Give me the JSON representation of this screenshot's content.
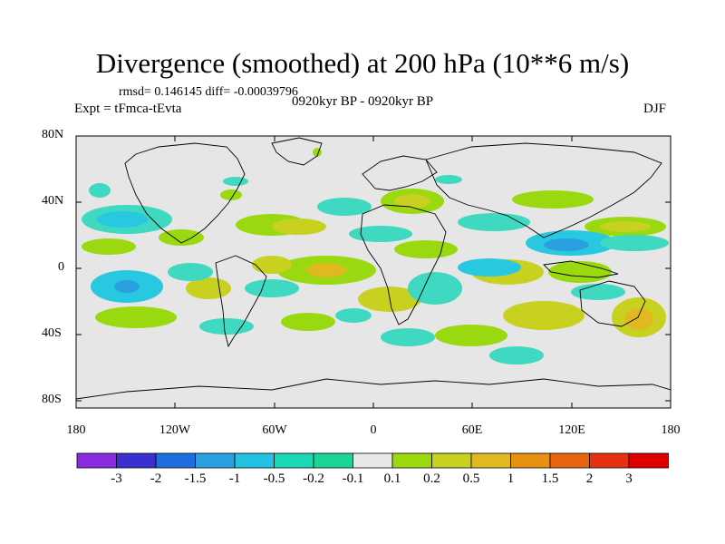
{
  "title": "Divergence (smoothed) at 200 hPa (10**6 m/s)",
  "stats": "rmsd= 0.146145 diff= -0.00039796",
  "experiment": "Expt = tFmca-tEvta",
  "period": "0920kyr BP - 0920kyr BP",
  "season": "DJF",
  "lat_labels": [
    "80N",
    "40N",
    "0",
    "40S",
    "80S"
  ],
  "lon_labels": [
    "180",
    "120W",
    "60W",
    "0",
    "60E",
    "120E",
    "180"
  ],
  "colorbar": {
    "labels": [
      "-3",
      "-2",
      "-1.5",
      "-1",
      "-0.5",
      "-0.2",
      "-0.1",
      "0.1",
      "0.2",
      "0.5",
      "1",
      "1.5",
      "2",
      "3"
    ],
    "colors": [
      "#8a2be2",
      "#3a2fd0",
      "#1e6ee0",
      "#2aa0e0",
      "#22c3e2",
      "#1dd8b8",
      "#18d596",
      "#e8e8e8",
      "#9ad810",
      "#c8d020",
      "#e0b820",
      "#e89010",
      "#e86410",
      "#e83010",
      "#e00000"
    ]
  },
  "colors": {
    "background": "#e6e6e6",
    "neg_weak": "#3ed9c0",
    "neg_mid": "#28c8e0",
    "neg_strong": "#2aa0e0",
    "pos_weak": "#9ad810",
    "pos_mid": "#c8d020",
    "pos_strong": "#e0b820",
    "pos_max": "#e89010"
  }
}
